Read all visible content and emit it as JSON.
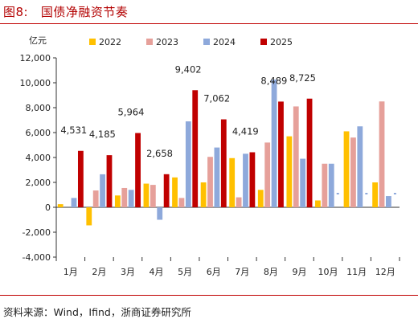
{
  "header": {
    "title": "图8:   国债净融资节奏"
  },
  "footer": {
    "source": "资料来源：Wind，Ifind，浙商证券研究所"
  },
  "chart_data": {
    "type": "bar",
    "title": "",
    "unit_label": "亿元",
    "categories": [
      "1月",
      "2月",
      "3月",
      "4月",
      "5月",
      "6月",
      "7月",
      "8月",
      "9月",
      "10月",
      "11月",
      "12月"
    ],
    "ylim": [
      -4000,
      12000
    ],
    "yticks": [
      -4000,
      -2000,
      0,
      2000,
      4000,
      6000,
      8000,
      10000,
      12000
    ],
    "ytick_labels": [
      "-4,000",
      "-2,000",
      "0",
      "2,000",
      "4,000",
      "6,000",
      "8,000",
      "10,000",
      "12,000"
    ],
    "legend_position": "top",
    "grid": false,
    "series": [
      {
        "name": "2022",
        "color": "#FFC000",
        "values": [
          250,
          -1450,
          950,
          1900,
          2400,
          2000,
          3950,
          1400,
          5700,
          550,
          6100,
          2000
        ]
      },
      {
        "name": "2023",
        "color": "#E6A09A",
        "values": [
          0,
          1350,
          1550,
          1800,
          750,
          4050,
          800,
          5200,
          8100,
          3500,
          5600,
          8500
        ]
      },
      {
        "name": "2024",
        "color": "#8EA9DB",
        "values": [
          750,
          2650,
          1400,
          -1000,
          6900,
          4800,
          4300,
          10250,
          3900,
          3500,
          6500,
          900
        ]
      },
      {
        "name": "2025",
        "color": "#C00000",
        "values": [
          4531,
          4185,
          5964,
          2658,
          9402,
          7062,
          4419,
          8489,
          8725,
          null,
          null,
          null
        ]
      }
    ],
    "data_labels": {
      "series": "2025",
      "text": [
        "4,531",
        "4,185",
        "5,964",
        "2,658",
        "9,402",
        "7,062",
        "4,419",
        "8,489",
        "8,725"
      ]
    },
    "missing_marker_color": "#8EA9DB"
  }
}
